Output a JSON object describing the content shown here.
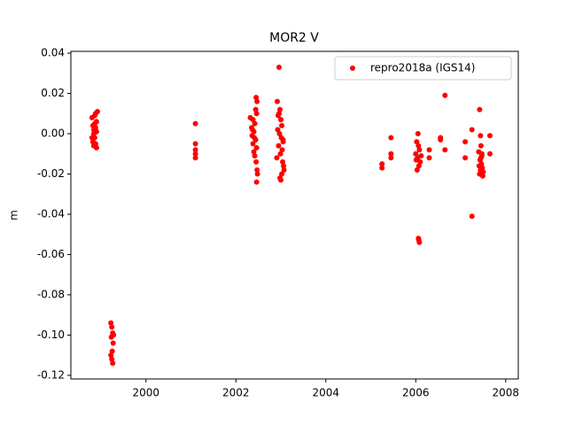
{
  "chart_data": {
    "type": "scatter",
    "title": "MOR2 V",
    "y_label": "m",
    "x": [
      1998.8,
      1998.82,
      1998.84,
      1998.86,
      1998.88,
      1998.9,
      1998.82,
      1998.84,
      1998.86,
      1998.88,
      1998.9,
      1998.92,
      1998.8,
      1998.86,
      1998.9,
      1998.84,
      1998.88,
      1999.22,
      1999.24,
      1999.26,
      1999.23,
      1999.27,
      1999.25,
      1999.22,
      1999.24,
      1999.26,
      1999.28,
      2001.1,
      2001.1,
      2001.1,
      2001.1,
      2001.1,
      2002.45,
      2002.47,
      2002.44,
      2002.46,
      2002.38,
      2002.42,
      2002.35,
      2002.4,
      2002.36,
      2002.44,
      2002.38,
      2002.46,
      2002.4,
      2002.42,
      2002.45,
      2002.47,
      2002.48,
      2002.46,
      2002.32,
      2002.37,
      2002.41,
      2002.96,
      2002.92,
      2002.98,
      2002.94,
      2003.0,
      2003.02,
      2002.93,
      2002.97,
      2003.01,
      2003.05,
      2002.95,
      2003.03,
      2002.99,
      2002.91,
      2003.04,
      2003.06,
      2003.07,
      2003.02,
      2002.98,
      2003.0,
      2002.96,
      2003.05,
      2005.25,
      2005.25,
      2005.45,
      2005.45,
      2005.45,
      2006.05,
      2006.02,
      2006.06,
      2006.08,
      2006.0,
      2006.04,
      2006.1,
      2006.07,
      2006.03,
      2006.06,
      2006.08,
      2006.07,
      2006.12,
      2006.01,
      2006.3,
      2006.3,
      2006.55,
      2006.55,
      2006.65,
      2006.65,
      2007.1,
      2007.1,
      2007.25,
      2007.25,
      2007.42,
      2007.44,
      2007.45,
      2007.4,
      2007.47,
      2007.43,
      2007.46,
      2007.41,
      2007.48,
      2007.44,
      2007.5,
      2007.42,
      2007.49,
      2007.45,
      2007.47,
      2007.65,
      2007.65
    ],
    "x_ticks": [
      2000,
      2002,
      2004,
      2006,
      2008
    ],
    "xlim": [
      1998.33,
      2008.28
    ],
    "ylim": [
      -0.1218,
      0.0409
    ],
    "yticks": [
      {
        "value": -0.12,
        "label": "-0.12"
      },
      {
        "value": -0.1,
        "label": "-0.10"
      },
      {
        "value": -0.08,
        "label": "-0.08"
      },
      {
        "value": -0.06,
        "label": "-0.06"
      },
      {
        "value": -0.04,
        "label": "-0.04"
      },
      {
        "value": -0.02,
        "label": "-0.02"
      },
      {
        "value": 0,
        "label": "0.00"
      },
      0.02,
      0.04
    ],
    "legend_position": "upper right",
    "series": [
      {
        "name": "repro2018a (IGS14)",
        "color": "#ff0000",
        "values": [
          0.008,
          0.004,
          0.0,
          -0.002,
          0.01,
          0.006,
          -0.004,
          0.002,
          0.009,
          -0.005,
          -0.007,
          0.011,
          -0.002,
          0.005,
          0.001,
          -0.006,
          0.003,
          -0.094,
          -0.096,
          -0.099,
          -0.101,
          -0.104,
          -0.108,
          -0.11,
          -0.112,
          -0.114,
          -0.1,
          0.005,
          -0.005,
          -0.008,
          -0.01,
          -0.012,
          0.018,
          0.016,
          0.012,
          0.01,
          0.007,
          0.005,
          0.003,
          0.001,
          -0.001,
          -0.003,
          -0.005,
          -0.007,
          -0.009,
          -0.011,
          -0.014,
          -0.018,
          -0.02,
          -0.024,
          0.008,
          0.002,
          -0.002,
          0.033,
          0.016,
          0.012,
          0.009,
          0.007,
          0.004,
          0.002,
          0.0,
          -0.002,
          -0.004,
          -0.006,
          -0.008,
          -0.01,
          -0.012,
          -0.014,
          -0.016,
          -0.018,
          -0.02,
          -0.022,
          -0.023,
          0.01,
          -0.003,
          -0.015,
          -0.017,
          -0.002,
          -0.01,
          -0.012,
          0.0,
          -0.004,
          -0.006,
          -0.008,
          -0.01,
          -0.012,
          -0.014,
          -0.016,
          -0.018,
          -0.052,
          -0.054,
          -0.053,
          -0.011,
          -0.013,
          -0.008,
          -0.012,
          -0.002,
          -0.003,
          0.019,
          -0.008,
          -0.004,
          -0.012,
          0.002,
          -0.041,
          0.012,
          -0.001,
          -0.006,
          -0.009,
          -0.011,
          -0.013,
          -0.015,
          -0.016,
          -0.017,
          -0.018,
          -0.019,
          -0.02,
          -0.021,
          -0.012,
          -0.01,
          -0.001,
          -0.01
        ]
      }
    ]
  }
}
